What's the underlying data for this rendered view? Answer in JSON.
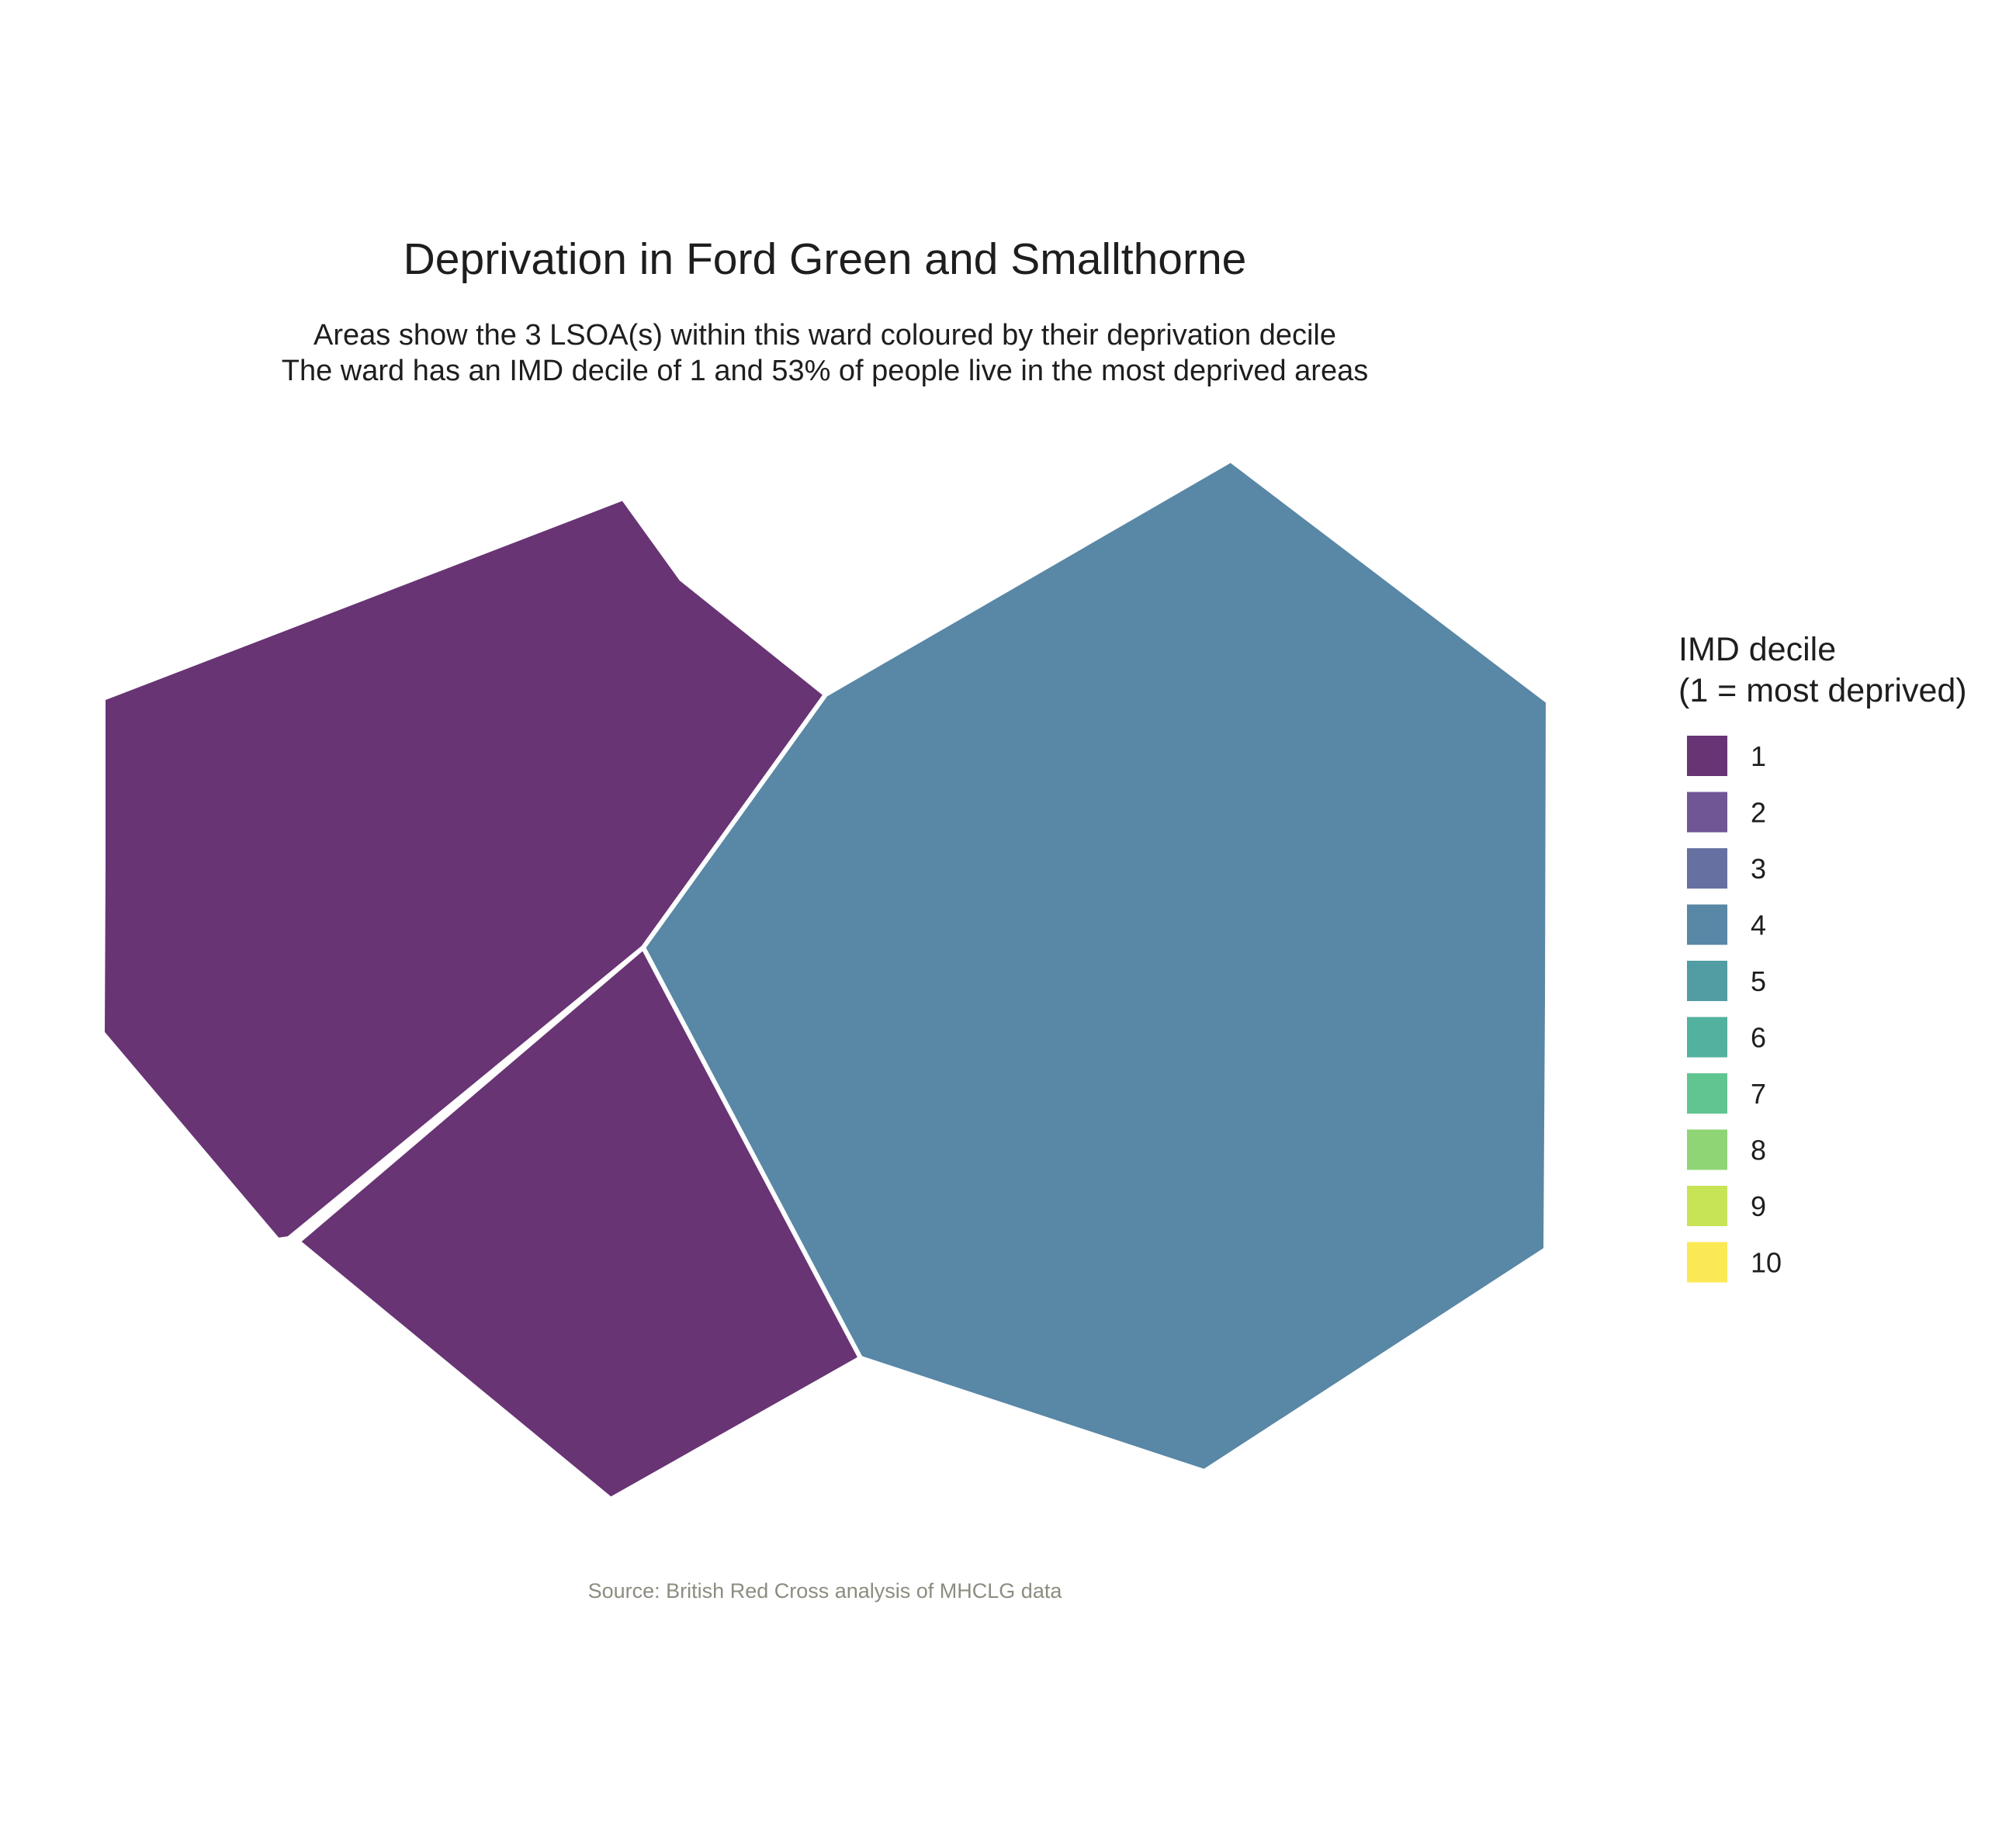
{
  "title": "Deprivation in Ford Green and Smallthorne",
  "subtitle_lines": [
    "Areas show the 3 LSOA(s) within this ward coloured by their deprivation decile",
    "The ward has an IMD decile of 1 and 53% of people live in the most deprived areas"
  ],
  "caption": "Source: British Red Cross analysis of MHCLG data",
  "legend": {
    "title_lines": [
      "IMD decile",
      "(1 = most deprived)"
    ],
    "items": [
      {
        "label": "1",
        "color": "#683474"
      },
      {
        "label": "2",
        "color": "#715696"
      },
      {
        "label": "3",
        "color": "#6671a1"
      },
      {
        "label": "4",
        "color": "#5987a6"
      },
      {
        "label": "5",
        "color": "#529ca3"
      },
      {
        "label": "6",
        "color": "#52b19f"
      },
      {
        "label": "7",
        "color": "#61c591"
      },
      {
        "label": "8",
        "color": "#8fd575"
      },
      {
        "label": "9",
        "color": "#c7e356"
      },
      {
        "label": "10",
        "color": "#fbe855"
      }
    ]
  },
  "chart_data": {
    "type": "choropleth",
    "areas": [
      {
        "id": "lsoa-north-west",
        "imd_decile": 1
      },
      {
        "id": "lsoa-south",
        "imd_decile": 1
      },
      {
        "id": "lsoa-east",
        "imd_decile": 4
      }
    ]
  },
  "colors": {
    "text": "#1e1e1e",
    "caption": "#8c8c80",
    "area_border": "#ffffff"
  }
}
